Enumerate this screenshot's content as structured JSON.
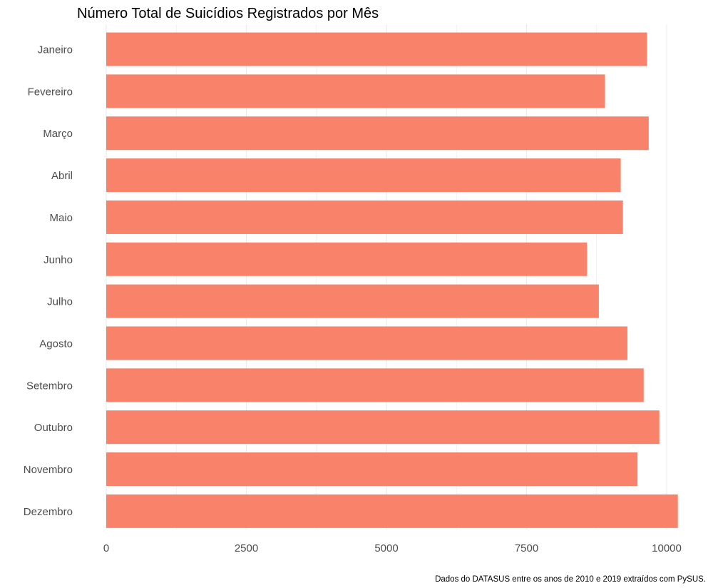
{
  "chart_data": {
    "type": "bar",
    "orientation": "horizontal",
    "title": "Número Total de Suicídios Registrados por Mês",
    "caption": "Dados do DATASUS entre os anos de 2010 e 2019 extraídos com PySUS.",
    "xlabel": "",
    "ylabel": "",
    "categories": [
      "Janeiro",
      "Fevereiro",
      "Março",
      "Abril",
      "Maio",
      "Junho",
      "Julho",
      "Agosto",
      "Setembro",
      "Outubro",
      "Novembro",
      "Dezembro"
    ],
    "values": [
      9650,
      8900,
      9680,
      9180,
      9220,
      8580,
      8790,
      9300,
      9590,
      9870,
      9480,
      10200
    ],
    "xlim": [
      0,
      10200
    ],
    "xticks": [
      0,
      2500,
      5000,
      7500,
      10000
    ],
    "xtick_labels": [
      "0",
      "2500",
      "5000",
      "7500",
      "10000"
    ],
    "bar_color": "#F8826A",
    "grid": "vertical major and minor lines",
    "grid_color": "#ebebeb",
    "legend": "none"
  }
}
